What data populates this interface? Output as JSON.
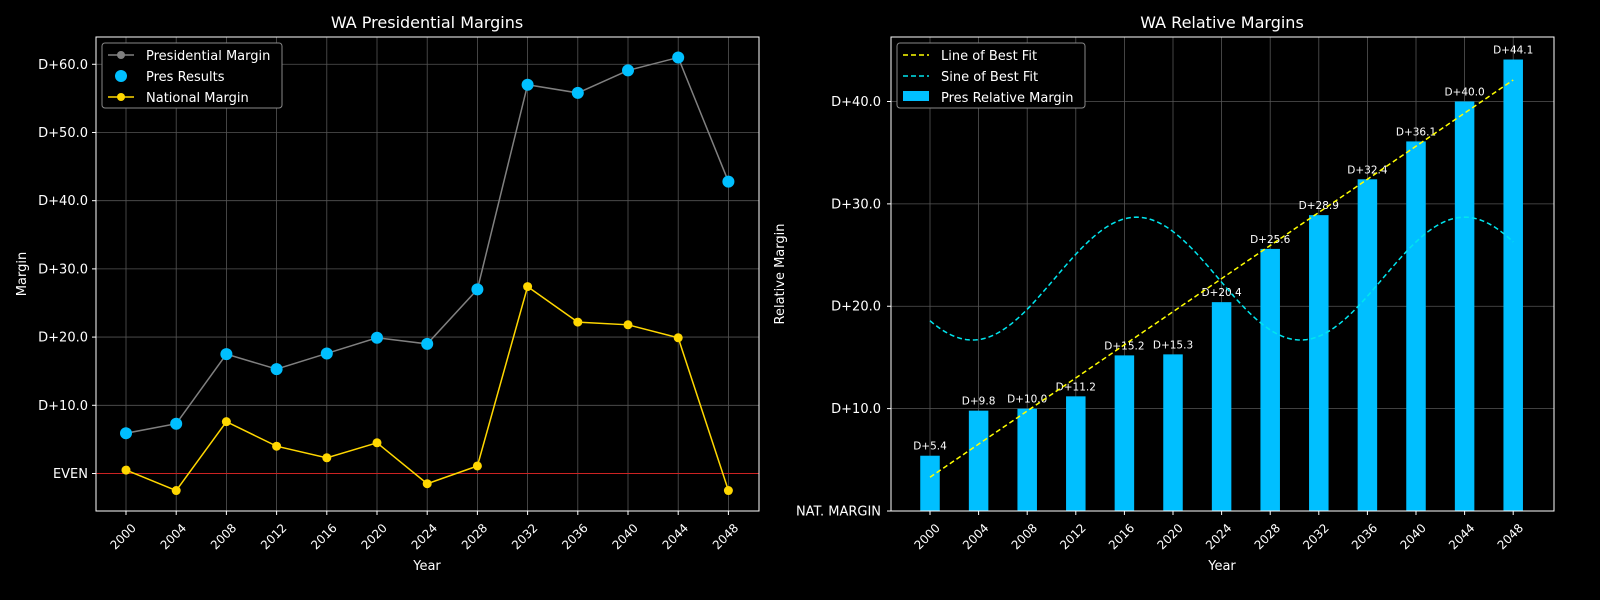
{
  "chart_data": [
    {
      "type": "line",
      "title": "WA Presidential Margins",
      "xlabel": "Year",
      "ylabel": "Margin",
      "categories": [
        "2000",
        "2004",
        "2008",
        "2012",
        "2016",
        "2020",
        "2024",
        "2028",
        "2032",
        "2036",
        "2040",
        "2044",
        "2048"
      ],
      "ylim": [
        -5.5,
        64
      ],
      "yticks": [
        {
          "value": 0,
          "label": "EVEN"
        },
        {
          "value": 10,
          "label": "D+10.0"
        },
        {
          "value": 20,
          "label": "D+20.0"
        },
        {
          "value": 30,
          "label": "D+30.0"
        },
        {
          "value": 40,
          "label": "D+40.0"
        },
        {
          "value": 50,
          "label": "D+50.0"
        },
        {
          "value": 60,
          "label": "D+60.0"
        }
      ],
      "grid": true,
      "legend_position": "top-left",
      "series": [
        {
          "name": "Presidential Margin",
          "color": "#808080",
          "values": [
            5.9,
            7.3,
            17.5,
            15.3,
            17.6,
            19.9,
            19.0,
            27.0,
            57.0,
            55.8,
            59.1,
            61.0,
            42.8
          ]
        },
        {
          "name": "Pres Results",
          "color": "#00bfff",
          "values": [
            5.9,
            7.3,
            17.5,
            15.3,
            17.6,
            19.9,
            19.0,
            27.0,
            57.0,
            55.8,
            59.1,
            61.0,
            42.8
          ]
        },
        {
          "name": "National Margin",
          "color": "#ffd700",
          "values": [
            0.5,
            -2.5,
            7.6,
            4.0,
            2.3,
            4.5,
            -1.5,
            1.1,
            27.4,
            22.2,
            21.8,
            19.9,
            -2.5
          ]
        }
      ],
      "reference_line": {
        "value": 0,
        "color": "#cc2222"
      }
    },
    {
      "type": "bar",
      "title": "WA Relative Margins",
      "xlabel": "Year",
      "ylabel": "Relative Margin",
      "categories": [
        "2000",
        "2004",
        "2008",
        "2012",
        "2016",
        "2020",
        "2024",
        "2028",
        "2032",
        "2036",
        "2040",
        "2044",
        "2048"
      ],
      "ylim": [
        0,
        46.3
      ],
      "yticks": [
        {
          "value": 0,
          "label": "NAT. MARGIN"
        },
        {
          "value": 10,
          "label": "D+10.0"
        },
        {
          "value": 20,
          "label": "D+20.0"
        },
        {
          "value": 30,
          "label": "D+30.0"
        },
        {
          "value": 40,
          "label": "D+40.0"
        }
      ],
      "grid": true,
      "legend_position": "top-left",
      "series": [
        {
          "name": "Pres Relative Margin",
          "color": "#00bfff",
          "values": [
            5.4,
            9.8,
            10.0,
            11.2,
            15.2,
            15.3,
            20.4,
            25.6,
            28.9,
            32.4,
            36.1,
            40.0,
            44.1
          ],
          "data_labels": [
            "D+5.4",
            "D+9.8",
            "D+10.0",
            "D+11.2",
            "D+15.2",
            "D+15.3",
            "D+20.4",
            "D+25.6",
            "D+28.9",
            "D+32.4",
            "D+36.1",
            "D+40.0",
            "D+44.1"
          ]
        },
        {
          "name": "Line of Best Fit",
          "color": "#ffff00",
          "style": "dashed",
          "start": [
            2000,
            3.3
          ],
          "end": [
            2048,
            42.1
          ]
        },
        {
          "name": "Sine of Best Fit",
          "color": "#00e5ee",
          "style": "dashed",
          "center": 22.7,
          "amplitude": 6.0,
          "period_years": 27,
          "peak_year": 2017
        }
      ]
    }
  ]
}
